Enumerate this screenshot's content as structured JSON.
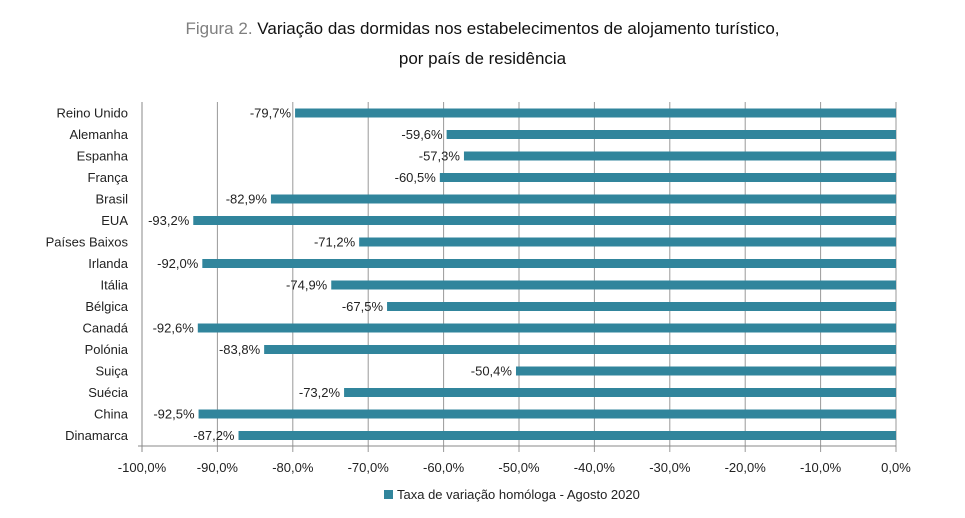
{
  "chart_data": {
    "type": "bar",
    "orientation": "horizontal",
    "title_prefix": "Figura 2.",
    "title": "Variação das dormidas nos estabelecimentos de alojamento turístico,",
    "title_line2": "por país de residência",
    "categories": [
      "Reino Unido",
      "Alemanha",
      "Espanha",
      "França",
      "Brasil",
      "EUA",
      "Países Baixos",
      "Irlanda",
      "Itália",
      "Bélgica",
      "Canadá",
      "Polónia",
      "Suiça",
      "Suécia",
      "China",
      "Dinamarca"
    ],
    "series": [
      {
        "name": "Taxa de variação homóloga - Agosto  2020",
        "values": [
          -79.7,
          -59.6,
          -57.3,
          -60.5,
          -82.9,
          -93.2,
          -71.2,
          -92.0,
          -74.9,
          -67.5,
          -92.6,
          -83.8,
          -50.4,
          -73.2,
          -92.5,
          -87.2
        ],
        "color": "#31859c"
      }
    ],
    "data_labels": [
      "-79,7%",
      "-59,6%",
      "-57,3%",
      "-60,5%",
      "-82,9%",
      "-93,2%",
      "-71,2%",
      "-92,0%",
      "-74,9%",
      "-67,5%",
      "-92,6%",
      "-83,8%",
      "-50,4%",
      "-73,2%",
      "-92,5%",
      "-87,2%"
    ],
    "xlim": [
      -100,
      0
    ],
    "xticks": [
      -100,
      -90,
      -80,
      -70,
      -60,
      -50,
      -40,
      -30,
      -20,
      -10,
      0
    ],
    "xtick_labels": [
      "-100,0%",
      "-90,0%",
      "-80,0%",
      "-70,0%",
      "-60,0%",
      "-50,0%",
      "-40,0%",
      "-30,0%",
      "-20,0%",
      "-10,0%",
      "0,0%"
    ],
    "grid": "vertical",
    "legend_position": "bottom"
  }
}
